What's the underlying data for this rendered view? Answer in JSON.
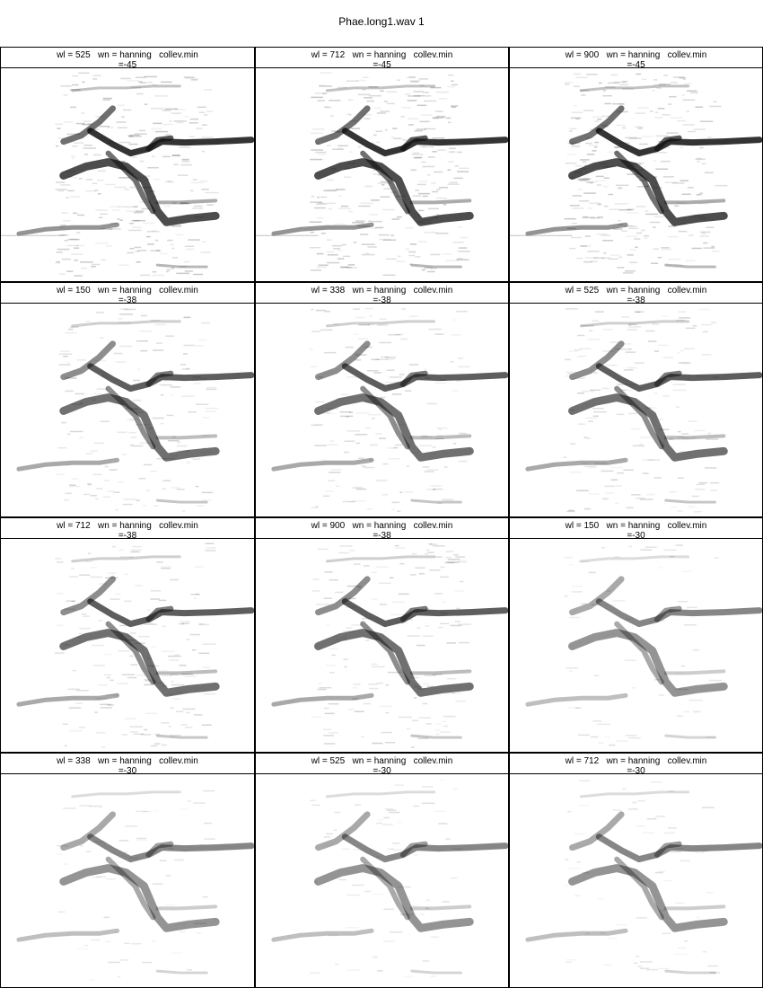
{
  "title": "Phae.long1.wav 1",
  "chart_data": {
    "type": "heatmap",
    "title": "Phae.long1.wav 1",
    "layout": {
      "rows": 4,
      "cols": 3
    },
    "colormap": "grayscale (white = low, black = high)",
    "axes_shown": false,
    "panels": [
      {
        "label": "wl = 525   wn = hanning   collev.min",
        "collev_min": "=-45",
        "wl": 525,
        "wn": "hanning",
        "collev_min_value": -45
      },
      {
        "label": "wl = 712   wn = hanning   collev.min",
        "collev_min": "=-45",
        "wl": 712,
        "wn": "hanning",
        "collev_min_value": -45
      },
      {
        "label": "wl = 900   wn = hanning   collev.min",
        "collev_min": "=-45",
        "wl": 900,
        "wn": "hanning",
        "collev_min_value": -45
      },
      {
        "label": "wl = 150   wn = hanning   collev.min",
        "collev_min": "=-38",
        "wl": 150,
        "wn": "hanning",
        "collev_min_value": -38
      },
      {
        "label": "wl = 338   wn = hanning   collev.min",
        "collev_min": "=-38",
        "wl": 338,
        "wn": "hanning",
        "collev_min_value": -38
      },
      {
        "label": "wl = 525   wn = hanning   collev.min",
        "collev_min": "=-38",
        "wl": 525,
        "wn": "hanning",
        "collev_min_value": -38
      },
      {
        "label": "wl = 712   wn = hanning   collev.min",
        "collev_min": "=-38",
        "wl": 712,
        "wn": "hanning",
        "collev_min_value": -38
      },
      {
        "label": "wl = 900   wn = hanning   collev.min",
        "collev_min": "=-38",
        "wl": 900,
        "wn": "hanning",
        "collev_min_value": -38
      },
      {
        "label": "wl = 150   wn = hanning   collev.min",
        "collev_min": "=-30",
        "wl": 150,
        "wn": "hanning",
        "collev_min_value": -30
      },
      {
        "label": "wl = 338   wn = hanning   collev.min",
        "collev_min": "=-30",
        "wl": 338,
        "wn": "hanning",
        "collev_min_value": -30
      },
      {
        "label": "wl = 525   wn = hanning   collev.min",
        "collev_min": "=-30",
        "wl": 525,
        "wn": "hanning",
        "collev_min_value": -30
      },
      {
        "label": "wl = 712   wn = hanning   collev.min",
        "collev_min": "=-30",
        "wl": 712,
        "wn": "hanning",
        "collev_min_value": -30
      }
    ]
  }
}
